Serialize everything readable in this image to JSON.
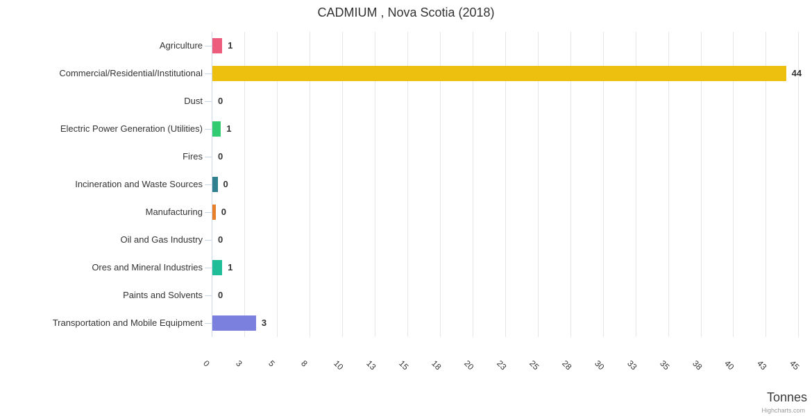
{
  "title": "CADMIUM , Nova Scotia (2018)",
  "credit": "Highcharts.com",
  "chart_data": {
    "type": "bar",
    "orientation": "horizontal",
    "title": "CADMIUM , Nova Scotia (2018)",
    "xlabel": "Tonnes",
    "grid": true,
    "axis_max": 45.67,
    "categories": [
      "Agriculture",
      "Commercial/Residential/Institutional",
      "Dust",
      "Electric Power Generation (Utilities)",
      "Fires",
      "Incineration and Waste Sources",
      "Manufacturing",
      "Oil and Gas Industry",
      "Ores and Mineral Industries",
      "Paints and Solvents",
      "Transportation and Mobile Equipment"
    ],
    "value_labels": [
      "1",
      "44",
      "0",
      "1",
      "0",
      "0",
      "0",
      "0",
      "1",
      "0",
      "3"
    ],
    "values": [
      1,
      44,
      0,
      1,
      0,
      0,
      0,
      0,
      1,
      0,
      3
    ],
    "bar_values_estimated": [
      0.75,
      44,
      0,
      0.65,
      0,
      0.4,
      0.25,
      0,
      0.75,
      0,
      3.35
    ],
    "bar_colors": [
      "#ed5c7d",
      "#edbf0f",
      "",
      "#31cc71",
      "",
      "#31808f",
      "#e8802b",
      "",
      "#1fbd98",
      "",
      "#7b80df"
    ],
    "x_ticks": [
      {
        "label": "0",
        "value": 0
      },
      {
        "label": "3",
        "value": 2.5
      },
      {
        "label": "5",
        "value": 5
      },
      {
        "label": "8",
        "value": 7.5
      },
      {
        "label": "10",
        "value": 10
      },
      {
        "label": "13",
        "value": 12.5
      },
      {
        "label": "15",
        "value": 15
      },
      {
        "label": "18",
        "value": 17.5
      },
      {
        "label": "20",
        "value": 20
      },
      {
        "label": "23",
        "value": 22.5
      },
      {
        "label": "25",
        "value": 25
      },
      {
        "label": "28",
        "value": 27.5
      },
      {
        "label": "30",
        "value": 30
      },
      {
        "label": "33",
        "value": 32.5
      },
      {
        "label": "35",
        "value": 35
      },
      {
        "label": "38",
        "value": 37.5
      },
      {
        "label": "40",
        "value": 40
      },
      {
        "label": "43",
        "value": 42.5
      },
      {
        "label": "45",
        "value": 45
      }
    ],
    "colors": {
      "gridline": "#e6e6e6",
      "axis_line": "#ccd6eb",
      "text": "#333333",
      "credit_text": "#999999"
    }
  }
}
